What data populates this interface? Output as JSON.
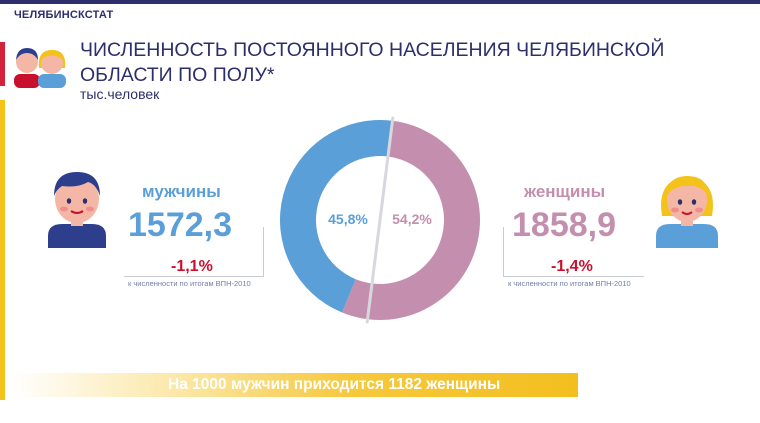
{
  "brand": "ЧЕЛЯБИНСКСТАТ",
  "title": "ЧИСЛЕННОСТЬ ПОСТОЯННОГО НАСЕЛЕНИЯ ЧЕЛЯБИНСКОЙ ОБЛАСТИ ПО ПОЛУ*",
  "subtitle": "тыс.человек",
  "men": {
    "label": "мужчины",
    "value": "1572,3",
    "change": "-1,1%",
    "note": "к численности по итогам ВПН-2010"
  },
  "women": {
    "label": "женщины",
    "value": "1858,9",
    "change": "-1,4%",
    "note": "к численности по итогам ВПН-2010"
  },
  "footer": "На 1000 мужчин приходится 1182 женщины",
  "colors": {
    "men": "#5a9fd8",
    "women": "#c48fae",
    "change": "#c8102e",
    "navy": "#2c2f6b",
    "accent_red": "#d3223b",
    "accent_yellow": "#f3c21b"
  },
  "icons": {
    "header": "people-pair-icon",
    "men": "man-avatar-icon",
    "women": "woman-avatar-icon"
  },
  "chart_data": {
    "type": "pie",
    "categories": [
      "мужчины",
      "женщины"
    ],
    "values": [
      45.8,
      54.2
    ],
    "labels": [
      "45,8%",
      "54,2%"
    ],
    "colors": [
      "#5a9fd8",
      "#c48fae"
    ]
  }
}
